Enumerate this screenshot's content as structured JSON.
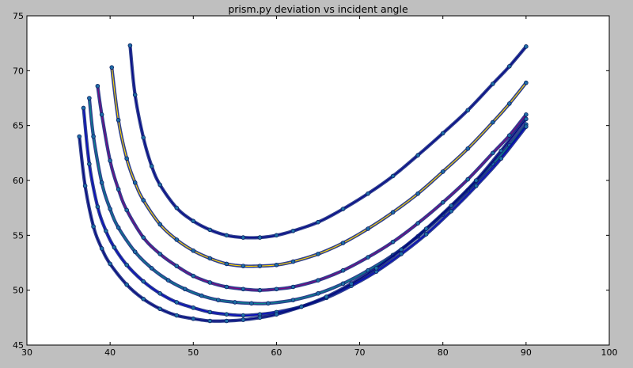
{
  "chart_data": {
    "type": "scatter",
    "title": "prism.py deviation vs incident angle",
    "xlabel": "",
    "ylabel": "",
    "xlim": [
      30,
      100
    ],
    "ylim": [
      45,
      75
    ],
    "x_ticks": [
      "30",
      "40",
      "50",
      "60",
      "70",
      "80",
      "90",
      "100"
    ],
    "y_ticks": [
      "45",
      "50",
      "55",
      "60",
      "65",
      "70",
      "75"
    ],
    "grid": false,
    "legend": "none",
    "series": [
      {
        "color": "#00008b",
        "x": [
          42.4,
          43,
          44,
          45,
          46,
          48,
          50,
          52,
          54,
          56,
          58,
          60,
          62,
          65,
          68,
          71,
          74,
          77,
          80,
          83,
          86,
          88,
          90
        ],
        "y": [
          72.3,
          67.8,
          63.9,
          61.3,
          59.6,
          57.5,
          56.3,
          55.5,
          55.0,
          54.8,
          54.8,
          55.0,
          55.4,
          56.2,
          57.4,
          58.8,
          60.4,
          62.3,
          64.3,
          66.4,
          68.8,
          70.4,
          72.2
        ]
      },
      {
        "color": "#ffd700",
        "x": [
          40.2,
          41,
          42,
          43,
          44,
          46,
          48,
          50,
          52,
          54,
          56,
          58,
          60,
          62,
          65,
          68,
          71,
          74,
          77,
          80,
          83,
          86,
          88,
          90
        ],
        "y": [
          70.3,
          65.5,
          62.0,
          59.8,
          58.2,
          56.0,
          54.6,
          53.6,
          52.9,
          52.4,
          52.2,
          52.2,
          52.3,
          52.6,
          53.3,
          54.3,
          55.6,
          57.1,
          58.8,
          60.8,
          62.9,
          65.3,
          67.0,
          68.9
        ]
      },
      {
        "color": "#800080",
        "x": [
          38.5,
          39,
          40,
          41,
          42,
          44,
          46,
          48,
          50,
          52,
          54,
          56,
          58,
          60,
          62,
          65,
          68,
          71,
          74,
          77,
          80,
          83,
          86,
          88,
          90
        ],
        "y": [
          68.6,
          66.0,
          61.8,
          59.2,
          57.3,
          54.8,
          53.3,
          52.2,
          51.3,
          50.7,
          50.3,
          50.1,
          50.0,
          50.1,
          50.3,
          50.9,
          51.8,
          53.0,
          54.4,
          56.1,
          58.0,
          60.1,
          62.5,
          64.1,
          66.0
        ]
      },
      {
        "color": "#008b8b",
        "x": [
          37.5,
          38,
          39,
          40,
          41,
          43,
          45,
          47,
          49,
          51,
          53,
          55,
          57,
          59,
          62,
          65,
          68,
          71,
          74,
          77,
          80,
          83,
          86,
          88,
          90
        ],
        "y": [
          67.5,
          64.0,
          59.8,
          57.4,
          55.7,
          53.5,
          52.0,
          50.9,
          50.1,
          49.5,
          49.1,
          48.9,
          48.8,
          48.8,
          49.1,
          49.7,
          50.6,
          51.8,
          53.2,
          54.9,
          56.9,
          59.1,
          61.5,
          63.2,
          65.1
        ]
      },
      {
        "color": "#0000cd",
        "x": [
          36.8,
          37.5,
          38.5,
          39.5,
          40.5,
          42,
          44,
          46,
          48,
          50,
          52,
          54,
          56,
          58,
          60,
          63,
          66,
          69,
          72,
          75,
          78,
          81,
          84,
          87,
          90
        ],
        "y": [
          66.6,
          61.5,
          57.6,
          55.4,
          53.9,
          52.3,
          50.8,
          49.7,
          48.9,
          48.4,
          48.0,
          47.8,
          47.7,
          47.8,
          48.0,
          48.5,
          49.3,
          50.4,
          51.7,
          53.3,
          55.1,
          57.2,
          59.5,
          62.0,
          64.9
        ]
      },
      {
        "color": "#000080",
        "x": [
          36.3,
          37,
          38,
          39,
          40,
          42,
          44,
          46,
          48,
          50,
          52,
          54,
          56,
          58,
          60,
          63,
          66,
          69,
          72,
          75,
          78,
          81,
          84,
          87,
          90
        ],
        "y": [
          64.0,
          59.5,
          55.8,
          53.8,
          52.4,
          50.5,
          49.2,
          48.3,
          47.7,
          47.4,
          47.2,
          47.2,
          47.3,
          47.5,
          47.8,
          48.5,
          49.4,
          50.6,
          52.0,
          53.7,
          55.6,
          57.7,
          60.0,
          62.7,
          65.6
        ]
      }
    ]
  }
}
